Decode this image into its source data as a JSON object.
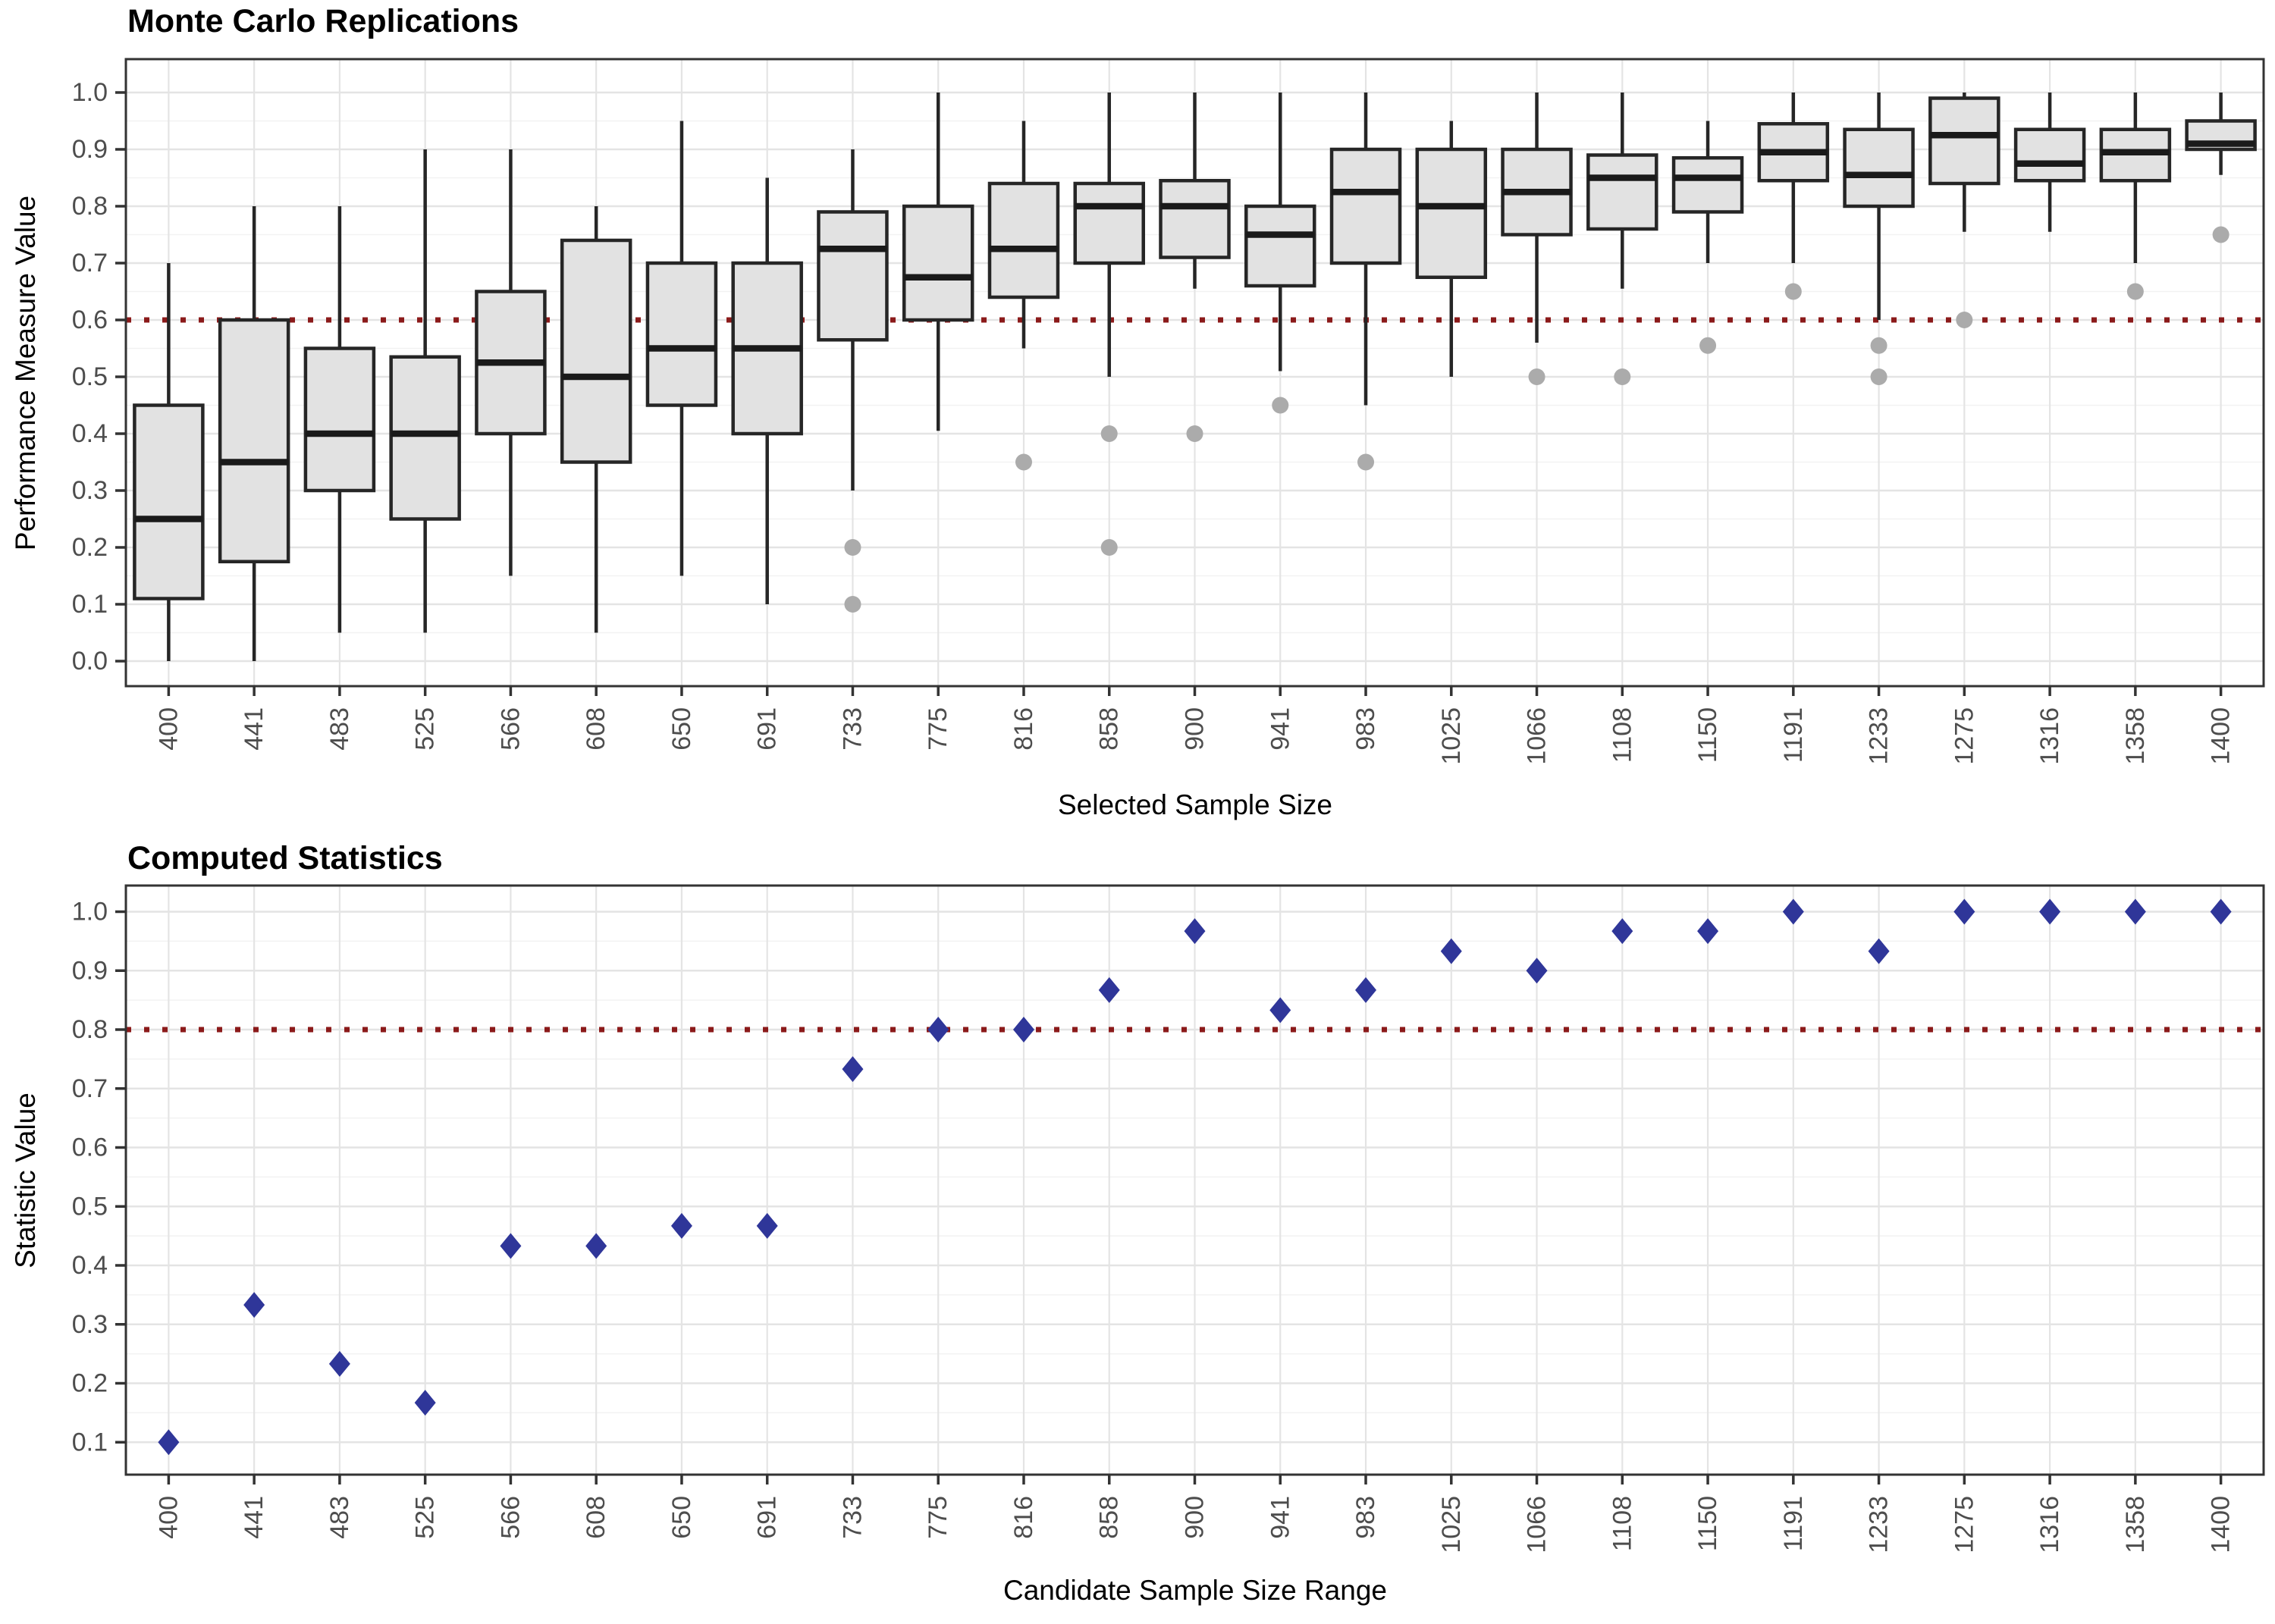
{
  "page": {
    "background": "#FFFFFF"
  },
  "style": {
    "threshold_color": "#8B1A1A",
    "box_fill": "#E2E2E2",
    "box_stroke": "#262626",
    "median_color": "#1A1A1A",
    "outlier_color": "#ABABAB",
    "point_color": "#2F3699",
    "grid_major": "#E4E4E4",
    "grid_minor": "#F2F2F2",
    "tick_label_color": "#4D4D4D",
    "axis_color": "#333333",
    "panel_border": "#333333"
  },
  "chart_data": [
    {
      "type": "boxplot",
      "title": "Monte Carlo Replications",
      "xlabel": "Selected Sample Size",
      "ylabel": "Performance Measure Value",
      "categories": [
        400,
        441,
        483,
        525,
        566,
        608,
        650,
        691,
        733,
        775,
        816,
        858,
        900,
        941,
        983,
        1025,
        1066,
        1108,
        1150,
        1191,
        1233,
        1275,
        1316,
        1358,
        1400
      ],
      "ylim": [
        0.0,
        1.0
      ],
      "ytick_step": 0.1,
      "ytick_labels": [
        "0.0",
        "0.1",
        "0.2",
        "0.3",
        "0.4",
        "0.5",
        "0.6",
        "0.7",
        "0.8",
        "0.9",
        "1.0"
      ],
      "threshold": 0.6,
      "grid": "on",
      "legend": "none",
      "boxes": [
        {
          "whisker_low": 0.0,
          "q1": 0.11,
          "median": 0.25,
          "q3": 0.45,
          "whisker_high": 0.7,
          "outliers": []
        },
        {
          "whisker_low": 0.0,
          "q1": 0.175,
          "median": 0.35,
          "q3": 0.6,
          "whisker_high": 0.8,
          "outliers": []
        },
        {
          "whisker_low": 0.05,
          "q1": 0.3,
          "median": 0.4,
          "q3": 0.55,
          "whisker_high": 0.8,
          "outliers": []
        },
        {
          "whisker_low": 0.05,
          "q1": 0.25,
          "median": 0.4,
          "q3": 0.535,
          "whisker_high": 0.9,
          "outliers": []
        },
        {
          "whisker_low": 0.15,
          "q1": 0.4,
          "median": 0.525,
          "q3": 0.65,
          "whisker_high": 0.9,
          "outliers": []
        },
        {
          "whisker_low": 0.05,
          "q1": 0.35,
          "median": 0.5,
          "q3": 0.74,
          "whisker_high": 0.8,
          "outliers": []
        },
        {
          "whisker_low": 0.15,
          "q1": 0.45,
          "median": 0.55,
          "q3": 0.7,
          "whisker_high": 0.95,
          "outliers": []
        },
        {
          "whisker_low": 0.1,
          "q1": 0.4,
          "median": 0.55,
          "q3": 0.7,
          "whisker_high": 0.85,
          "outliers": []
        },
        {
          "whisker_low": 0.3,
          "q1": 0.565,
          "median": 0.725,
          "q3": 0.79,
          "whisker_high": 0.9,
          "outliers": [
            0.2,
            0.1
          ]
        },
        {
          "whisker_low": 0.405,
          "q1": 0.6,
          "median": 0.675,
          "q3": 0.8,
          "whisker_high": 1.0,
          "outliers": []
        },
        {
          "whisker_low": 0.55,
          "q1": 0.64,
          "median": 0.725,
          "q3": 0.84,
          "whisker_high": 0.95,
          "outliers": [
            0.35
          ]
        },
        {
          "whisker_low": 0.5,
          "q1": 0.7,
          "median": 0.8,
          "q3": 0.84,
          "whisker_high": 1.0,
          "outliers": [
            0.4,
            0.2
          ]
        },
        {
          "whisker_low": 0.655,
          "q1": 0.71,
          "median": 0.8,
          "q3": 0.845,
          "whisker_high": 1.0,
          "outliers": [
            0.4
          ]
        },
        {
          "whisker_low": 0.51,
          "q1": 0.66,
          "median": 0.75,
          "q3": 0.8,
          "whisker_high": 1.0,
          "outliers": [
            0.45
          ]
        },
        {
          "whisker_low": 0.45,
          "q1": 0.7,
          "median": 0.825,
          "q3": 0.9,
          "whisker_high": 1.0,
          "outliers": [
            0.35
          ]
        },
        {
          "whisker_low": 0.5,
          "q1": 0.675,
          "median": 0.8,
          "q3": 0.9,
          "whisker_high": 0.95,
          "outliers": []
        },
        {
          "whisker_low": 0.56,
          "q1": 0.75,
          "median": 0.825,
          "q3": 0.9,
          "whisker_high": 1.0,
          "outliers": [
            0.5
          ]
        },
        {
          "whisker_low": 0.655,
          "q1": 0.76,
          "median": 0.85,
          "q3": 0.89,
          "whisker_high": 1.0,
          "outliers": [
            0.5
          ]
        },
        {
          "whisker_low": 0.7,
          "q1": 0.79,
          "median": 0.85,
          "q3": 0.885,
          "whisker_high": 0.95,
          "outliers": [
            0.555
          ]
        },
        {
          "whisker_low": 0.7,
          "q1": 0.845,
          "median": 0.895,
          "q3": 0.945,
          "whisker_high": 1.0,
          "outliers": [
            0.65
          ]
        },
        {
          "whisker_low": 0.6,
          "q1": 0.8,
          "median": 0.855,
          "q3": 0.935,
          "whisker_high": 1.0,
          "outliers": [
            0.555,
            0.5
          ]
        },
        {
          "whisker_low": 0.755,
          "q1": 0.84,
          "median": 0.925,
          "q3": 0.99,
          "whisker_high": 1.0,
          "outliers": [
            0.6
          ]
        },
        {
          "whisker_low": 0.755,
          "q1": 0.845,
          "median": 0.875,
          "q3": 0.935,
          "whisker_high": 1.0,
          "outliers": []
        },
        {
          "whisker_low": 0.7,
          "q1": 0.845,
          "median": 0.895,
          "q3": 0.935,
          "whisker_high": 1.0,
          "outliers": [
            0.65
          ]
        },
        {
          "whisker_low": 0.855,
          "q1": 0.9,
          "median": 0.91,
          "q3": 0.95,
          "whisker_high": 1.0,
          "outliers": [
            0.75
          ]
        }
      ]
    },
    {
      "type": "scatter",
      "title": "Computed Statistics",
      "xlabel": "Candidate Sample Size Range",
      "ylabel": "Statistic Value",
      "categories": [
        400,
        441,
        483,
        525,
        566,
        608,
        650,
        691,
        733,
        775,
        816,
        858,
        900,
        941,
        983,
        1025,
        1066,
        1108,
        1150,
        1191,
        1233,
        1275,
        1316,
        1358,
        1400
      ],
      "values": [
        0.1,
        0.333,
        0.233,
        0.167,
        0.433,
        0.433,
        0.467,
        0.467,
        0.733,
        0.8,
        0.8,
        0.867,
        0.967,
        0.833,
        0.867,
        0.933,
        0.9,
        0.967,
        0.967,
        1.0,
        0.933,
        1.0,
        1.0,
        1.0,
        1.0
      ],
      "ylim": [
        0.1,
        1.0
      ],
      "ytick_step": 0.1,
      "ytick_labels": [
        "0.1",
        "0.2",
        "0.3",
        "0.4",
        "0.5",
        "0.6",
        "0.7",
        "0.8",
        "0.9",
        "1.0"
      ],
      "threshold": 0.8,
      "marker": "diamond",
      "grid": "on",
      "legend": "none"
    }
  ]
}
